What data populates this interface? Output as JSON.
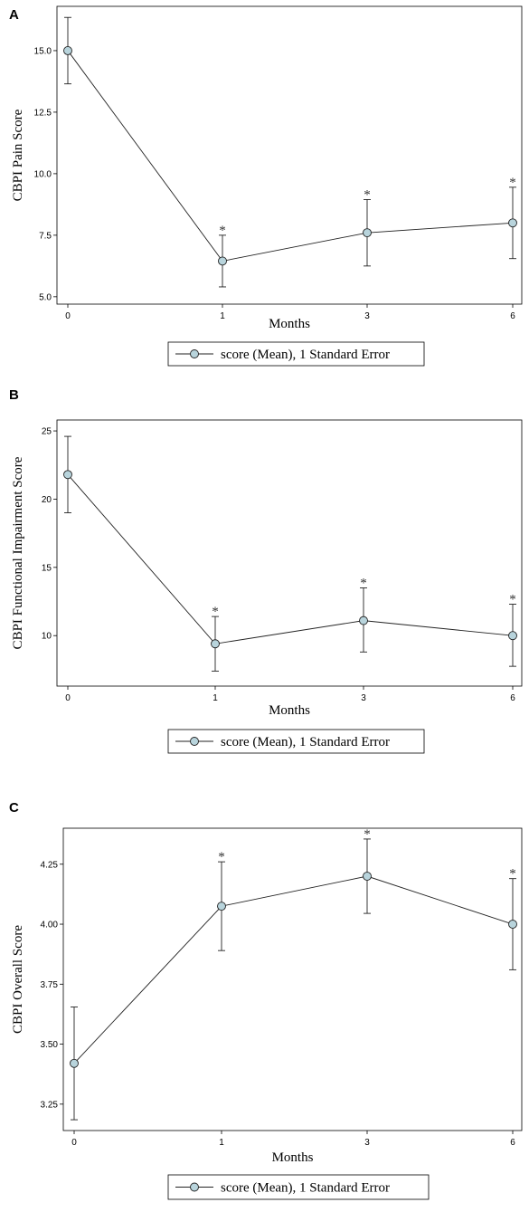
{
  "figure": {
    "legend_label": "score (Mean), 1 Standard Error",
    "marker_color": "#b8d4dc",
    "line_color": "#222222"
  },
  "chart_data": [
    {
      "panel": "A",
      "type": "line",
      "xlabel": "Months",
      "ylabel": "CBPI Pain Score",
      "x_ticks": [
        "0",
        "1",
        "3",
        "6"
      ],
      "y_ticks": [
        "5.0",
        "7.5",
        "10.0",
        "12.5",
        "15.0"
      ],
      "ylim": [
        4.7,
        16.8
      ],
      "series": [
        {
          "name": "score (Mean), 1 Standard Error",
          "values": [
            15.0,
            6.45,
            7.6,
            8.0
          ],
          "se_low": [
            13.65,
            5.4,
            6.25,
            6.55
          ],
          "se_high": [
            16.35,
            7.5,
            8.95,
            9.45
          ],
          "significant": [
            false,
            true,
            true,
            true
          ]
        }
      ]
    },
    {
      "panel": "B",
      "type": "line",
      "xlabel": "Months",
      "ylabel": "CBPI Functional Impairment Score",
      "x_ticks": [
        "0",
        "1",
        "3",
        "6"
      ],
      "y_ticks": [
        "10",
        "15",
        "20",
        "25"
      ],
      "ylim": [
        6.3,
        25.8
      ],
      "series": [
        {
          "name": "score (Mean), 1 Standard Error",
          "values": [
            21.8,
            9.4,
            11.1,
            10.0
          ],
          "se_low": [
            19.0,
            7.4,
            8.8,
            7.75
          ],
          "se_high": [
            24.6,
            11.4,
            13.5,
            12.3
          ],
          "significant": [
            false,
            true,
            true,
            true
          ]
        }
      ]
    },
    {
      "panel": "C",
      "type": "line",
      "xlabel": "Months",
      "ylabel": "CBPI Overall Score",
      "x_ticks": [
        "0",
        "1",
        "3",
        "6"
      ],
      "y_ticks": [
        "3.25",
        "3.50",
        "3.75",
        "4.00",
        "4.25"
      ],
      "ylim": [
        3.14,
        4.4
      ],
      "series": [
        {
          "name": "score (Mean), 1 Standard Error",
          "values": [
            3.42,
            4.075,
            4.2,
            4.0
          ],
          "se_low": [
            3.185,
            3.89,
            4.045,
            3.81
          ],
          "se_high": [
            3.655,
            4.26,
            4.355,
            4.19
          ],
          "significant": [
            false,
            true,
            true,
            true
          ]
        }
      ]
    }
  ]
}
